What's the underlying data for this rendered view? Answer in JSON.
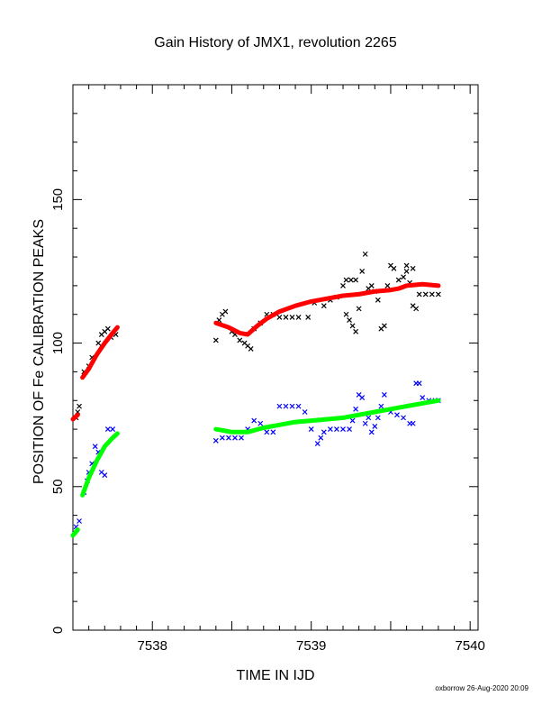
{
  "chart_data": {
    "type": "scatter",
    "title": "Gain History of JMX1, revolution 2265",
    "xlabel": "TIME IN IJD",
    "ylabel": "POSITION OF Fe CALIBRATION PEAKS",
    "xlim": [
      7537.5,
      7540.05
    ],
    "ylim": [
      0,
      190
    ],
    "x_ticks": [
      "7538",
      "7539",
      "7540"
    ],
    "y_ticks": [
      "0",
      "50",
      "100",
      "150"
    ],
    "credit": "oxborrow 26-Aug-2020 20:09",
    "grid": false,
    "series": [
      {
        "kind": "fit",
        "color": "#ff0000",
        "segments": [
          [
            [
              7537.5,
              73.5
            ],
            [
              7537.53,
              75
            ]
          ],
          [
            [
              7537.56,
              88
            ],
            [
              7537.6,
              91
            ],
            [
              7537.65,
              96
            ],
            [
              7537.7,
              100
            ],
            [
              7537.75,
              103.5
            ],
            [
              7537.78,
              105.5
            ]
          ],
          [
            [
              7538.4,
              107
            ],
            [
              7538.48,
              105.5
            ],
            [
              7538.55,
              103.5
            ],
            [
              7538.6,
              103
            ],
            [
              7538.66,
              106
            ],
            [
              7538.72,
              108.5
            ],
            [
              7538.8,
              111
            ],
            [
              7538.9,
              113
            ],
            [
              7539.0,
              114.5
            ],
            [
              7539.1,
              115.5
            ],
            [
              7539.2,
              116.5
            ],
            [
              7539.3,
              117
            ],
            [
              7539.4,
              118
            ],
            [
              7539.5,
              118.5
            ],
            [
              7539.55,
              119
            ],
            [
              7539.6,
              120
            ],
            [
              7539.7,
              120.5
            ],
            [
              7539.8,
              120
            ]
          ]
        ]
      },
      {
        "kind": "fit",
        "color": "#00ff00",
        "segments": [
          [
            [
              7537.5,
              33
            ],
            [
              7537.53,
              35
            ]
          ],
          [
            [
              7537.56,
              47
            ],
            [
              7537.6,
              53
            ],
            [
              7537.65,
              59
            ],
            [
              7537.7,
              64
            ],
            [
              7537.75,
              67
            ],
            [
              7537.78,
              68.5
            ]
          ],
          [
            [
              7538.4,
              70
            ],
            [
              7538.5,
              69
            ],
            [
              7538.6,
              69
            ],
            [
              7538.7,
              70.5
            ],
            [
              7538.8,
              71.5
            ],
            [
              7538.9,
              72.5
            ],
            [
              7539.0,
              73
            ],
            [
              7539.1,
              73.5
            ],
            [
              7539.2,
              74
            ],
            [
              7539.3,
              75
            ],
            [
              7539.4,
              76
            ],
            [
              7539.5,
              77
            ],
            [
              7539.6,
              78
            ],
            [
              7539.7,
              79
            ],
            [
              7539.8,
              80
            ]
          ]
        ]
      },
      {
        "kind": "measured",
        "color": "#000000",
        "points": [
          [
            7537.52,
            74
          ],
          [
            7537.53,
            76
          ],
          [
            7537.54,
            78
          ],
          [
            7537.57,
            90
          ],
          [
            7537.6,
            92
          ],
          [
            7537.62,
            95
          ],
          [
            7537.66,
            100
          ],
          [
            7537.68,
            103
          ],
          [
            7537.7,
            104
          ],
          [
            7537.72,
            105
          ],
          [
            7537.74,
            102
          ],
          [
            7537.77,
            103
          ],
          [
            7538.4,
            101
          ],
          [
            7538.42,
            108
          ],
          [
            7538.44,
            110
          ],
          [
            7538.46,
            111
          ],
          [
            7538.5,
            104
          ],
          [
            7538.52,
            103
          ],
          [
            7538.55,
            101
          ],
          [
            7538.58,
            100
          ],
          [
            7538.6,
            99
          ],
          [
            7538.62,
            98
          ],
          [
            7538.64,
            105
          ],
          [
            7538.68,
            107
          ],
          [
            7538.72,
            110
          ],
          [
            7538.76,
            110
          ],
          [
            7538.8,
            109
          ],
          [
            7538.84,
            109
          ],
          [
            7538.88,
            109
          ],
          [
            7538.92,
            109
          ],
          [
            7538.98,
            109
          ],
          [
            7539.02,
            114
          ],
          [
            7539.08,
            113
          ],
          [
            7539.12,
            115
          ],
          [
            7539.16,
            116
          ],
          [
            7539.2,
            120
          ],
          [
            7539.22,
            122
          ],
          [
            7539.25,
            122
          ],
          [
            7539.28,
            122
          ],
          [
            7539.22,
            110
          ],
          [
            7539.24,
            108
          ],
          [
            7539.26,
            106
          ],
          [
            7539.28,
            104
          ],
          [
            7539.3,
            112
          ],
          [
            7539.32,
            125
          ],
          [
            7539.34,
            131
          ],
          [
            7539.36,
            119
          ],
          [
            7539.38,
            120
          ],
          [
            7539.4,
            118
          ],
          [
            7539.42,
            115
          ],
          [
            7539.44,
            105
          ],
          [
            7539.46,
            106
          ],
          [
            7539.48,
            120
          ],
          [
            7539.5,
            127
          ],
          [
            7539.52,
            126
          ],
          [
            7539.55,
            122
          ],
          [
            7539.58,
            123
          ],
          [
            7539.6,
            125
          ],
          [
            7539.62,
            121
          ],
          [
            7539.64,
            113
          ],
          [
            7539.66,
            112
          ],
          [
            7539.68,
            117
          ],
          [
            7539.72,
            117
          ],
          [
            7539.76,
            117
          ],
          [
            7539.8,
            117
          ],
          [
            7539.6,
            127
          ],
          [
            7539.64,
            126
          ]
        ]
      },
      {
        "kind": "measured",
        "color": "#0000ff",
        "points": [
          [
            7537.52,
            36
          ],
          [
            7537.54,
            38
          ],
          [
            7537.57,
            48
          ],
          [
            7537.59,
            52
          ],
          [
            7537.6,
            55
          ],
          [
            7537.62,
            58
          ],
          [
            7537.64,
            64
          ],
          [
            7537.66,
            62
          ],
          [
            7537.68,
            55
          ],
          [
            7537.7,
            54
          ],
          [
            7537.72,
            70
          ],
          [
            7537.75,
            70
          ],
          [
            7538.4,
            66
          ],
          [
            7538.44,
            67
          ],
          [
            7538.48,
            67
          ],
          [
            7538.52,
            67
          ],
          [
            7538.56,
            67
          ],
          [
            7538.6,
            70
          ],
          [
            7538.64,
            73
          ],
          [
            7538.68,
            72
          ],
          [
            7538.72,
            69
          ],
          [
            7538.76,
            69
          ],
          [
            7538.8,
            78
          ],
          [
            7538.84,
            78
          ],
          [
            7538.88,
            78
          ],
          [
            7538.92,
            78
          ],
          [
            7538.96,
            76
          ],
          [
            7539.0,
            70
          ],
          [
            7539.04,
            65
          ],
          [
            7539.06,
            67
          ],
          [
            7539.08,
            69
          ],
          [
            7539.12,
            70
          ],
          [
            7539.16,
            70
          ],
          [
            7539.2,
            70
          ],
          [
            7539.24,
            70
          ],
          [
            7539.26,
            73
          ],
          [
            7539.28,
            77
          ],
          [
            7539.3,
            82
          ],
          [
            7539.32,
            81
          ],
          [
            7539.34,
            72
          ],
          [
            7539.36,
            74
          ],
          [
            7539.38,
            69
          ],
          [
            7539.4,
            71
          ],
          [
            7539.42,
            74
          ],
          [
            7539.44,
            78
          ],
          [
            7539.46,
            82
          ],
          [
            7539.5,
            76
          ],
          [
            7539.54,
            75
          ],
          [
            7539.58,
            74
          ],
          [
            7539.62,
            72
          ],
          [
            7539.64,
            72
          ],
          [
            7539.66,
            86
          ],
          [
            7539.68,
            86
          ],
          [
            7539.7,
            81
          ],
          [
            7539.74,
            80
          ],
          [
            7539.78,
            80
          ],
          [
            7539.8,
            80
          ]
        ]
      }
    ]
  }
}
